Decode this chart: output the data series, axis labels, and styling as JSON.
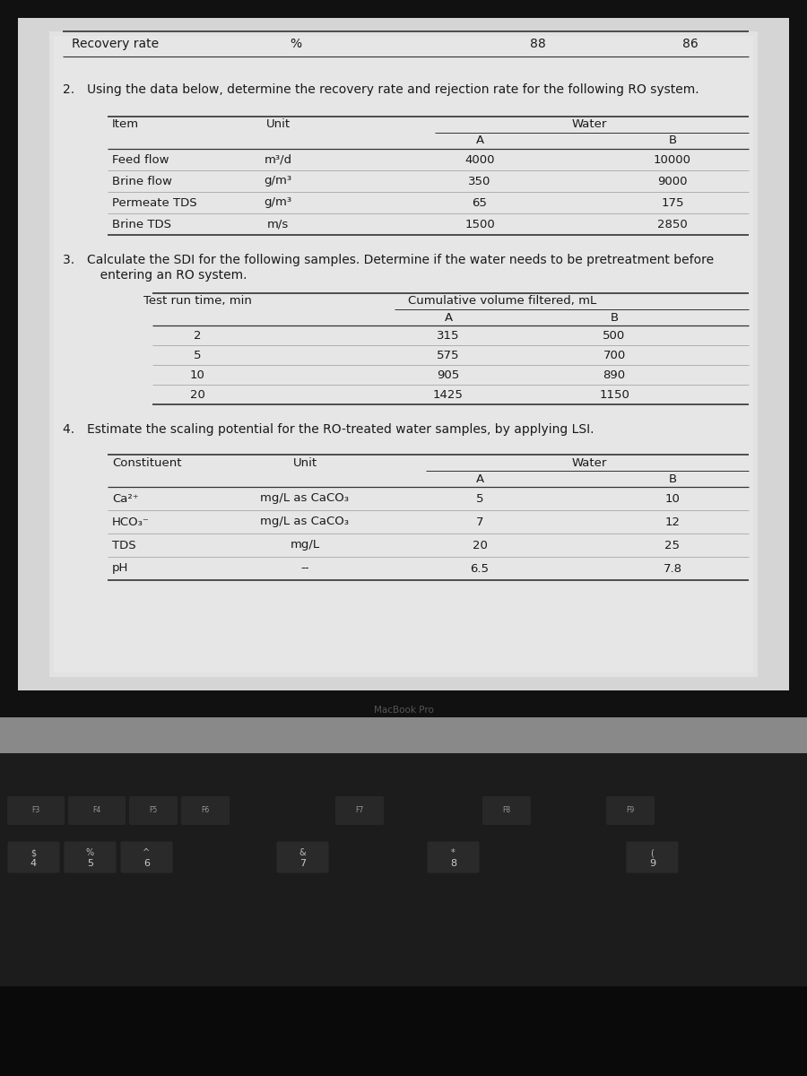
{
  "title_row": {
    "label": "Recovery rate",
    "unit": "%",
    "water_A": "88",
    "water_B": "86"
  },
  "q2_text_line1": "2. Using the data below, determine the recovery rate and rejection rate for the following RO system.",
  "q2_table": {
    "rows": [
      [
        "Feed flow",
        "m³/d",
        "4000",
        "10000"
      ],
      [
        "Brine flow",
        "g/m³",
        "350",
        "9000"
      ],
      [
        "Permeate TDS",
        "g/m³",
        "65",
        "175"
      ],
      [
        "Brine TDS",
        "m/s",
        "1500",
        "2850"
      ]
    ]
  },
  "q3_text_line1": "3. Calculate the SDI for the following samples. Determine if the water needs to be pretreatment before",
  "q3_text_line2": "   entering an RO system.",
  "q3_table": {
    "rows": [
      [
        "2",
        "315",
        "500"
      ],
      [
        "5",
        "575",
        "700"
      ],
      [
        "10",
        "905",
        "890"
      ],
      [
        "20",
        "1425",
        "1150"
      ]
    ]
  },
  "q4_text_line1": "4. Estimate the scaling potential for the RO-treated water samples, by applying LSI.",
  "q4_table": {
    "rows": [
      [
        "Ca²⁺",
        "mg/L as CaCO₃",
        "5",
        "10"
      ],
      [
        "HCO₃⁻",
        "mg/L as CaCO₃",
        "7",
        "12"
      ],
      [
        "TDS",
        "mg/L",
        "20",
        "25"
      ],
      [
        "pH",
        "--",
        "6.5",
        "7.8"
      ]
    ]
  },
  "screen_bg": "#d8d8d8",
  "screen_light": "#e8e8e8",
  "bezel_top_color": "#111111",
  "bezel_bar_color": "#8a8a8a",
  "kbd_bg": "#1c1c1c",
  "kbd_key_color": "#2a2a2a",
  "kbd_text_color": "#aaaaaa",
  "kbd_sub_color": "#cccccc",
  "macbook_text_color": "#444444"
}
